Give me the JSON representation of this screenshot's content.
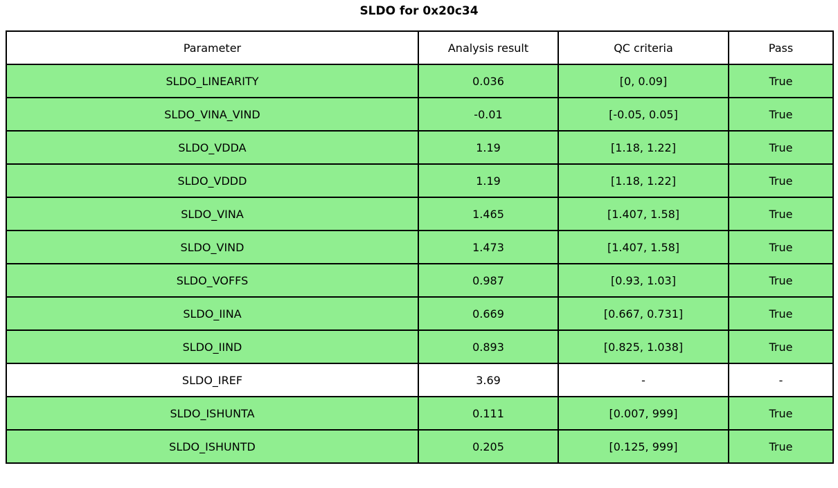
{
  "title": "SLDO for 0x20c34",
  "colors": {
    "pass_green": "#90EE90",
    "header_white": "#FFFFFF",
    "border_black": "#000000"
  },
  "chart_data": {
    "type": "table",
    "title": "SLDO for 0x20c34",
    "columns": [
      "Parameter",
      "Analysis result",
      "QC criteria",
      "Pass"
    ],
    "rows": [
      {
        "parameter": "SLDO_LINEARITY",
        "result": "0.036",
        "criteria": "[0, 0.09]",
        "pass": "True",
        "highlight": true
      },
      {
        "parameter": "SLDO_VINA_VIND",
        "result": "-0.01",
        "criteria": "[-0.05, 0.05]",
        "pass": "True",
        "highlight": true
      },
      {
        "parameter": "SLDO_VDDA",
        "result": "1.19",
        "criteria": "[1.18, 1.22]",
        "pass": "True",
        "highlight": true
      },
      {
        "parameter": "SLDO_VDDD",
        "result": "1.19",
        "criteria": "[1.18, 1.22]",
        "pass": "True",
        "highlight": true
      },
      {
        "parameter": "SLDO_VINA",
        "result": "1.465",
        "criteria": "[1.407, 1.58]",
        "pass": "True",
        "highlight": true
      },
      {
        "parameter": "SLDO_VIND",
        "result": "1.473",
        "criteria": "[1.407, 1.58]",
        "pass": "True",
        "highlight": true
      },
      {
        "parameter": "SLDO_VOFFS",
        "result": "0.987",
        "criteria": "[0.93, 1.03]",
        "pass": "True",
        "highlight": true
      },
      {
        "parameter": "SLDO_IINA",
        "result": "0.669",
        "criteria": "[0.667, 0.731]",
        "pass": "True",
        "highlight": true
      },
      {
        "parameter": "SLDO_IIND",
        "result": "0.893",
        "criteria": "[0.825, 1.038]",
        "pass": "True",
        "highlight": true
      },
      {
        "parameter": "SLDO_IREF",
        "result": "3.69",
        "criteria": "-",
        "pass": "-",
        "highlight": false
      },
      {
        "parameter": "SLDO_ISHUNTA",
        "result": "0.111",
        "criteria": "[0.007, 999]",
        "pass": "True",
        "highlight": true
      },
      {
        "parameter": "SLDO_ISHUNTD",
        "result": "0.205",
        "criteria": "[0.125, 999]",
        "pass": "True",
        "highlight": true
      }
    ],
    "layout_hints": {
      "highlight_color": "#90EE90",
      "header_background": "#FFFFFF",
      "border_color": "#000000",
      "grid": true
    }
  }
}
